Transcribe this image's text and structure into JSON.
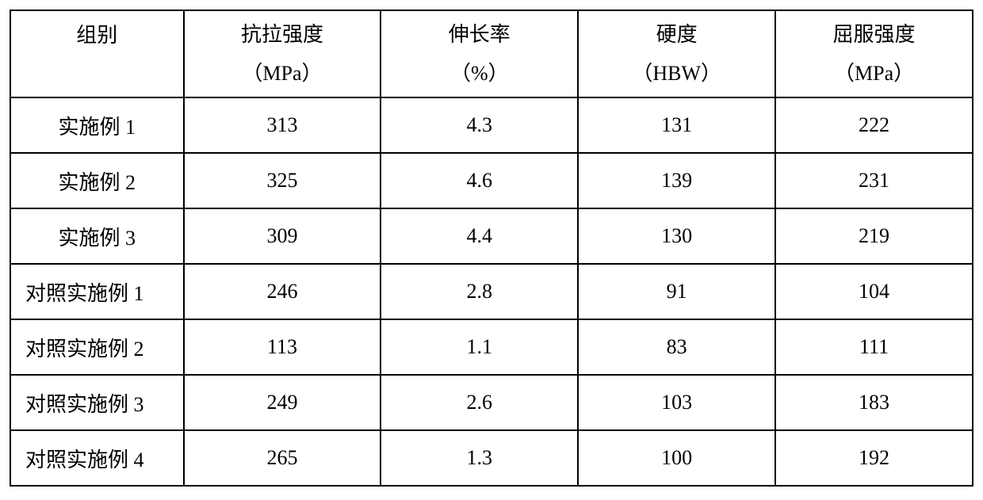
{
  "table": {
    "type": "table",
    "background_color": "#ffffff",
    "border_color": "#000000",
    "text_color": "#000000",
    "font_size": 26,
    "columns": [
      {
        "label_line1": "组别",
        "label_line2": "",
        "width_pct": 18,
        "align": "center"
      },
      {
        "label_line1": "抗拉强度",
        "label_line2": "（MPa）",
        "width_pct": 20.5,
        "align": "center"
      },
      {
        "label_line1": "伸长率",
        "label_line2": "（%）",
        "width_pct": 20.5,
        "align": "center"
      },
      {
        "label_line1": "硬度",
        "label_line2": "（HBW）",
        "width_pct": 20.5,
        "align": "center"
      },
      {
        "label_line1": "屈服强度",
        "label_line2": "（MPa）",
        "width_pct": 20.5,
        "align": "center"
      }
    ],
    "rows": [
      {
        "label": "实施例 1",
        "label_class": "row-label",
        "tensile": "313",
        "elongation": "4.3",
        "hardness": "131",
        "yield": "222"
      },
      {
        "label": "实施例 2",
        "label_class": "row-label",
        "tensile": "325",
        "elongation": "4.6",
        "hardness": "139",
        "yield": "231"
      },
      {
        "label": "实施例 3",
        "label_class": "row-label",
        "tensile": "309",
        "elongation": "4.4",
        "hardness": "130",
        "yield": "219"
      },
      {
        "label": "对照实施例 1",
        "label_class": "row-label compare",
        "tensile": "246",
        "elongation": "2.8",
        "hardness": "91",
        "yield": "104"
      },
      {
        "label": "对照实施例 2",
        "label_class": "row-label compare",
        "tensile": "113",
        "elongation": "1.1",
        "hardness": "83",
        "yield": "111"
      },
      {
        "label": "对照实施例 3",
        "label_class": "row-label compare",
        "tensile": "249",
        "elongation": "2.6",
        "hardness": "103",
        "yield": "183"
      },
      {
        "label": "对照实施例 4",
        "label_class": "row-label compare",
        "tensile": "265",
        "elongation": "1.3",
        "hardness": "100",
        "yield": "192"
      }
    ]
  }
}
